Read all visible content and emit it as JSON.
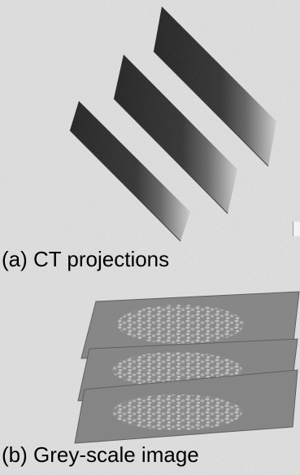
{
  "captions": {
    "a": "(a) CT projections",
    "b": "(b) Grey-scale image"
  },
  "colors": {
    "background": "#d4d4d4",
    "projection_dark": "#1a1a1a",
    "projection_light": "#cfcfcf",
    "slice_fill": "#858585",
    "slice_edge": "#5f5f5f",
    "particles": "#b5b5b5"
  }
}
